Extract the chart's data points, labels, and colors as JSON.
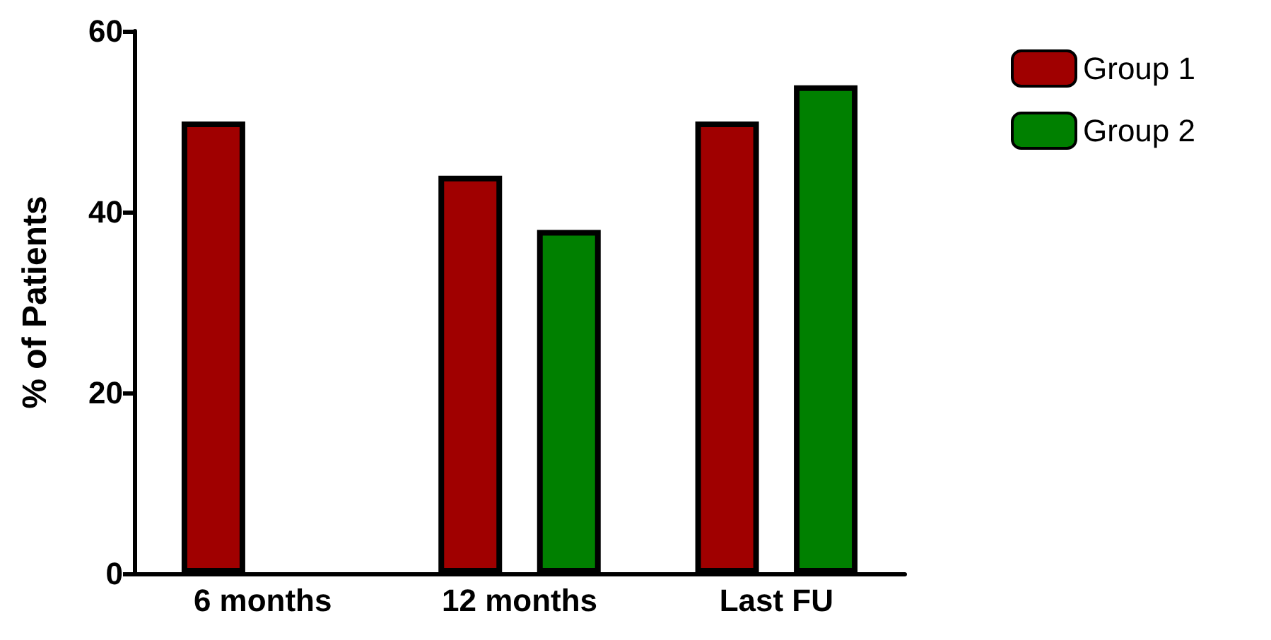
{
  "chart_data": {
    "type": "bar",
    "ylabel": "% of Patients",
    "categories": [
      "6 months",
      "12 months",
      "Last FU"
    ],
    "series": [
      {
        "name": "Group 1",
        "color": "#a00000",
        "values": [
          50,
          44,
          50
        ]
      },
      {
        "name": "Group 2",
        "color": "#008000",
        "values": [
          null,
          38,
          54
        ]
      }
    ],
    "ylim": [
      0,
      60
    ],
    "yticks": [
      0,
      20,
      40,
      60
    ],
    "grid": false,
    "legend": "top right"
  }
}
